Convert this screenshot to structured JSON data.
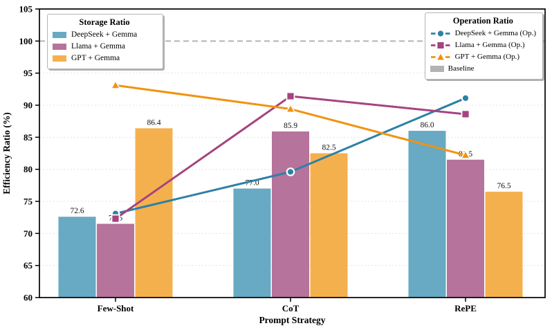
{
  "chart_data": {
    "type": "grouped-bar+line combo",
    "xlabel": "Prompt Strategy",
    "ylabel": "Efficiency Ratio (%)",
    "ylim": [
      60,
      105
    ],
    "yticks": [
      60,
      65,
      70,
      75,
      80,
      85,
      90,
      95,
      100,
      105
    ],
    "grid": "faint dashed horizontal gridlines at each y tick",
    "categories": [
      "Few-Shot",
      "CoT",
      "RePE"
    ],
    "bar_series": [
      {
        "name": "DeepSeek + Gemma",
        "color": "#68a9c3",
        "values": [
          72.6,
          77.0,
          86.0
        ]
      },
      {
        "name": "Llama + Gemma",
        "color": "#b6739b",
        "values": [
          71.5,
          85.9,
          81.5
        ]
      },
      {
        "name": "GPT + Gemma",
        "color": "#f5b04e",
        "values": [
          86.4,
          82.5,
          76.5
        ]
      }
    ],
    "line_series": [
      {
        "name": "DeepSeek + Gemma (Op.)",
        "color": "#2e80a5",
        "marker": "circle",
        "values": [
          73.1,
          79.6,
          91.1
        ]
      },
      {
        "name": "Llama + Gemma (Op.)",
        "color": "#a64380",
        "marker": "square",
        "values": [
          72.3,
          91.4,
          88.6
        ]
      },
      {
        "name": "GPT + Gemma (Op.)",
        "color": "#f0930f",
        "marker": "triangle",
        "values": [
          93.1,
          89.4,
          82.2
        ]
      }
    ],
    "baseline": {
      "value": 100,
      "label": "Baseline",
      "color": "#b3b3b3"
    },
    "legends": {
      "storage_title": "Storage Ratio",
      "operation_title": "Operation Ratio",
      "position_storage": "upper left",
      "position_operation": "upper right"
    }
  }
}
